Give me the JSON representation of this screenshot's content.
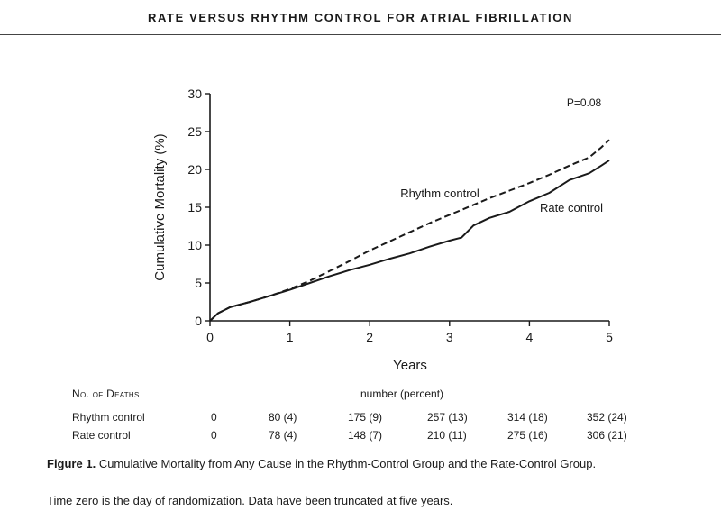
{
  "header": {
    "running_title": "RATE VERSUS RHYTHM CONTROL FOR ATRIAL FIBRILLATION"
  },
  "chart_data": {
    "type": "line",
    "title": "",
    "xlabel": "Years",
    "ylabel": "Cumulative Mortality (%)",
    "xlim": [
      0,
      5
    ],
    "ylim": [
      0,
      30
    ],
    "xticks": [
      0,
      1,
      2,
      3,
      4,
      5
    ],
    "yticks": [
      0,
      5,
      10,
      15,
      20,
      25,
      30
    ],
    "annotation": "P=0.08",
    "grid": false,
    "series": [
      {
        "name": "Rhythm control",
        "style": "dashed",
        "x": [
          0,
          0.1,
          0.25,
          0.5,
          0.75,
          1.0,
          1.25,
          1.5,
          1.75,
          2.0,
          2.25,
          2.5,
          2.75,
          3.0,
          3.25,
          3.5,
          3.75,
          4.0,
          4.25,
          4.5,
          4.75,
          4.9,
          5.0
        ],
        "y": [
          0,
          1.0,
          1.8,
          2.5,
          3.3,
          4.2,
          5.3,
          6.6,
          7.9,
          9.3,
          10.5,
          11.7,
          12.9,
          14.0,
          15.1,
          16.2,
          17.2,
          18.2,
          19.3,
          20.5,
          21.6,
          22.9,
          23.9
        ]
      },
      {
        "name": "Rate control",
        "style": "solid",
        "x": [
          0,
          0.1,
          0.25,
          0.5,
          0.75,
          1.0,
          1.25,
          1.5,
          1.75,
          2.0,
          2.25,
          2.5,
          2.75,
          3.0,
          3.15,
          3.3,
          3.5,
          3.75,
          4.0,
          4.25,
          4.5,
          4.75,
          4.9,
          5.0
        ],
        "y": [
          0,
          1.0,
          1.8,
          2.5,
          3.3,
          4.1,
          5.0,
          5.9,
          6.7,
          7.4,
          8.2,
          8.9,
          9.8,
          10.6,
          11.0,
          12.6,
          13.6,
          14.4,
          15.8,
          16.9,
          18.6,
          19.5,
          20.5,
          21.2
        ]
      }
    ],
    "series_labels": [
      "Rhythm control",
      "Rate control"
    ]
  },
  "deaths_table": {
    "heading": "No. of Deaths",
    "subheading": "number (percent)",
    "rows": [
      {
        "label": "Rhythm control",
        "values": [
          "0",
          "80 (4)",
          "175 (9)",
          "257 (13)",
          "314 (18)",
          "352 (24)"
        ]
      },
      {
        "label": "Rate control",
        "values": [
          "0",
          "78 (4)",
          "148 (7)",
          "210 (11)",
          "275 (16)",
          "306 (21)"
        ]
      }
    ]
  },
  "caption": {
    "figure_label": "Figure 1.",
    "text": "Cumulative Mortality from Any Cause in the Rhythm-Control Group and the Rate-Control Group.",
    "note": "Time zero is the day of randomization. Data have been truncated at five years."
  }
}
